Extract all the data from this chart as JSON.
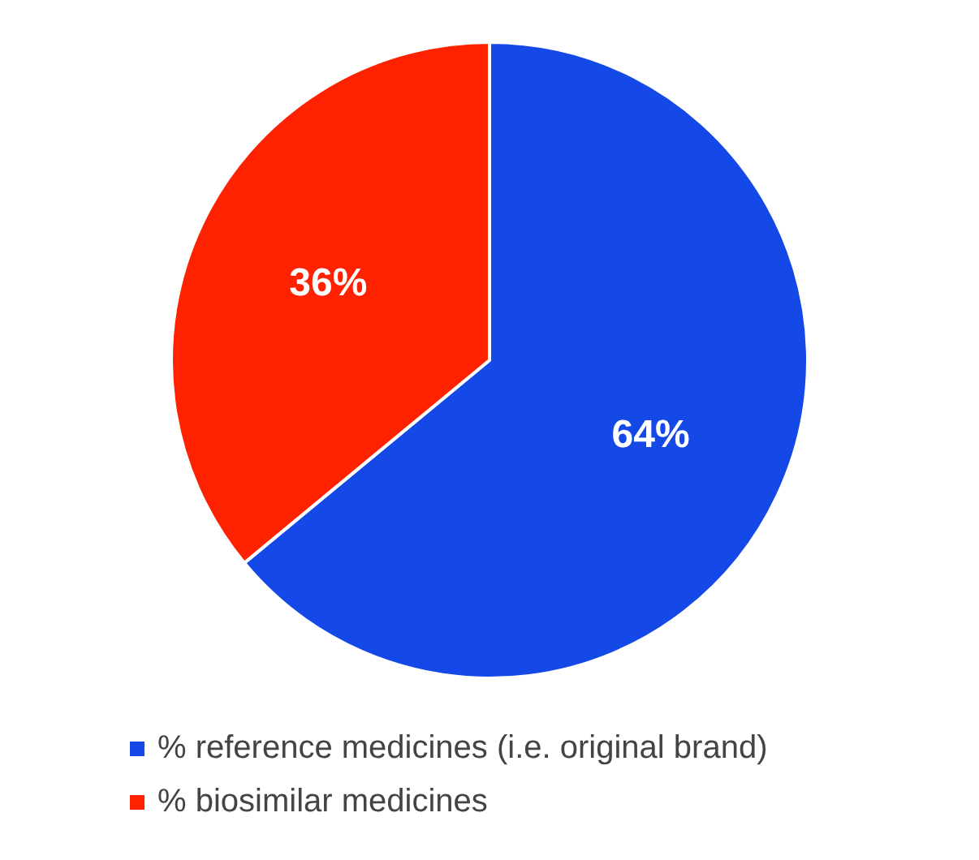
{
  "chart_data": {
    "type": "pie",
    "categories": [
      "% reference medicines (i.e. original brand)",
      "% biosimilar medicines"
    ],
    "values": [
      64,
      36
    ],
    "colors": [
      "#1449e8",
      "#ff2200"
    ],
    "value_labels": [
      "64%",
      "36%"
    ],
    "legend": "bottom left"
  }
}
